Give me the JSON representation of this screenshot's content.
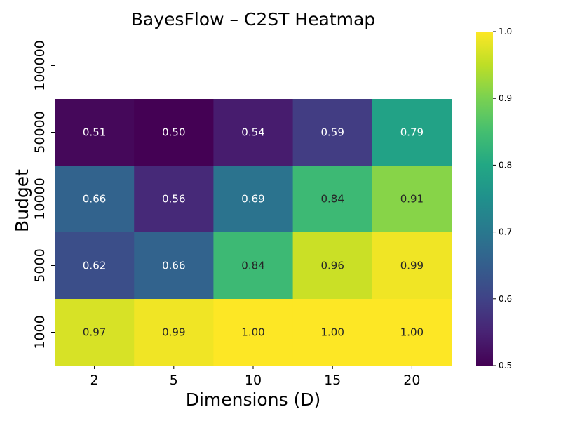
{
  "chart_data": {
    "type": "heatmap",
    "title": "BayesFlow – C2ST Heatmap",
    "xlabel": "Dimensions (D)",
    "ylabel": "Budget",
    "x_categories": [
      "2",
      "5",
      "10",
      "15",
      "20"
    ],
    "y_categories": [
      "100000",
      "50000",
      "10000",
      "5000",
      "1000"
    ],
    "values": [
      [
        null,
        null,
        null,
        null,
        null
      ],
      [
        0.51,
        0.5,
        0.54,
        0.59,
        0.79
      ],
      [
        0.66,
        0.56,
        0.69,
        0.84,
        0.91
      ],
      [
        0.62,
        0.66,
        0.84,
        0.96,
        0.99
      ],
      [
        0.97,
        0.99,
        1.0,
        1.0,
        1.0
      ]
    ],
    "colormap": "viridis",
    "color_range": [
      0.5,
      1.0
    ],
    "colorbar_ticks": [
      "0.5",
      "0.6",
      "0.7",
      "0.8",
      "0.9",
      "1.0"
    ],
    "annotation_decimals": 2
  }
}
